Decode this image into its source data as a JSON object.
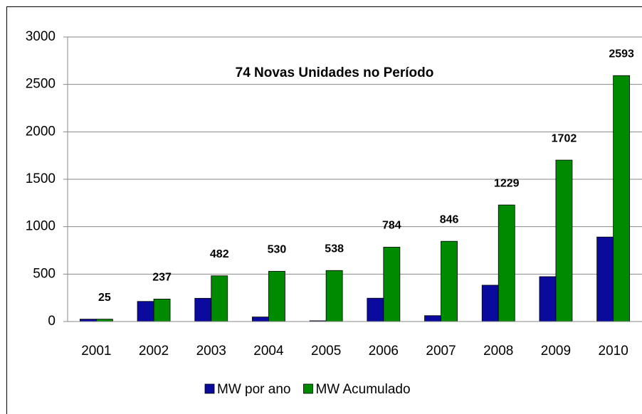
{
  "chart_data": {
    "type": "bar",
    "annotation": "74 Novas Unidades no Período",
    "categories": [
      "2001",
      "2002",
      "2003",
      "2004",
      "2005",
      "2006",
      "2007",
      "2008",
      "2009",
      "2010"
    ],
    "series": [
      {
        "name": "MW por ano",
        "color": "#0a0a9c",
        "values": [
          25,
          212,
          245,
          48,
          8,
          246,
          62,
          383,
          473,
          891
        ]
      },
      {
        "name": "MW Acumulado",
        "color": "#008a00",
        "values": [
          25,
          237,
          482,
          530,
          538,
          784,
          846,
          1229,
          1702,
          2593
        ]
      }
    ],
    "ylim": [
      0,
      3000
    ],
    "yticks": [
      0,
      500,
      1000,
      1500,
      2000,
      2500,
      3000
    ],
    "grid": true,
    "legend": "bottom"
  }
}
